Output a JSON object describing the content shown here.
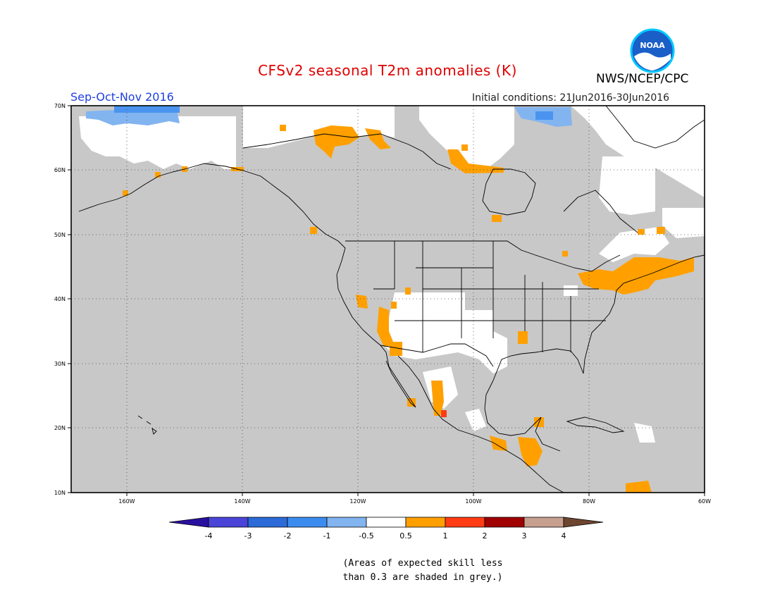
{
  "title": "CFSv2 seasonal T2m anomalies (K)",
  "agency": "NWS/NCEP/CPC",
  "logo_text": "NOAA",
  "season": "Sep-Oct-Nov 2016",
  "initial_conditions": "Initial conditions: 21Jun2016-30Jun2016",
  "map": {
    "lon_range": [
      -170,
      -60
    ],
    "lat_range": [
      10,
      70
    ],
    "lat_ticks": [
      "10N",
      "20N",
      "30N",
      "40N",
      "50N",
      "60N",
      "70N"
    ],
    "lon_ticks": [
      "160W",
      "140W",
      "120W",
      "100W",
      "80W",
      "60W"
    ],
    "colors": {
      "grey_low_skill": "#c8c8c8",
      "neutral": "#ffffff",
      "warm_0_5_to_1": "#ffa000",
      "warm_1_to_2": "#ff3c14",
      "cool_m1_to_m0_5": "#82b4f0",
      "cool_m2_to_m1": "#4a94f0"
    }
  },
  "legend": {
    "labels": [
      "-4",
      "-3",
      "-2",
      "-1",
      "-0.5",
      "0.5",
      "1",
      "2",
      "3",
      "4"
    ],
    "colors": [
      "#2a10a0",
      "#4a44d8",
      "#2c6ad8",
      "#3c8cf0",
      "#82b4f0",
      "#ffffff",
      "#ffa000",
      "#ff3c14",
      "#a00000",
      "#c8a090",
      "#6e4630"
    ]
  },
  "note_line1": "(Areas of expected skill less",
  "note_line2": "than 0.3 are shaded in grey.)"
}
